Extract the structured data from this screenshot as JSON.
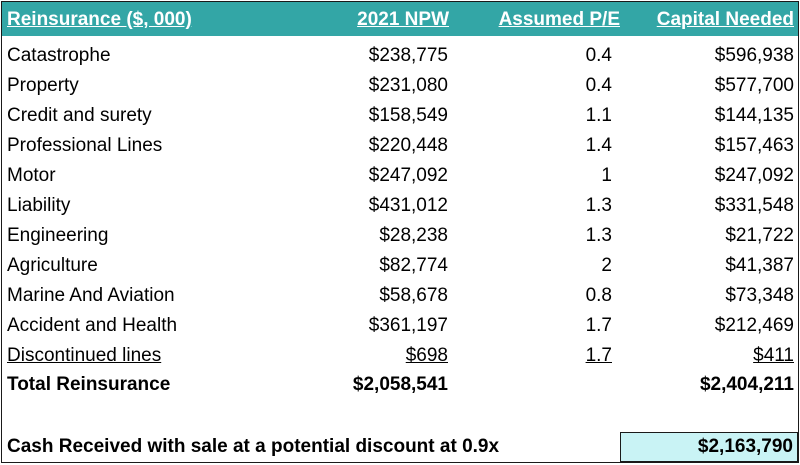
{
  "header": {
    "name": "Reinsurance ($, 000)",
    "npw": "2021 NPW",
    "pe": "Assumed P/E",
    "capital": "Capital Needed"
  },
  "rows": [
    {
      "name": "Catastrophe",
      "npw": "$238,775",
      "pe": "0.4",
      "capital": "$596,938"
    },
    {
      "name": "Property",
      "npw": "$231,080",
      "pe": "0.4",
      "capital": "$577,700"
    },
    {
      "name": "Credit and surety",
      "npw": "$158,549",
      "pe": "1.1",
      "capital": "$144,135"
    },
    {
      "name": "Professional Lines",
      "npw": "$220,448",
      "pe": "1.4",
      "capital": "$157,463"
    },
    {
      "name": "Motor",
      "npw": "$247,092",
      "pe": "1",
      "capital": "$247,092"
    },
    {
      "name": "Liability",
      "npw": "$431,012",
      "pe": "1.3",
      "capital": "$331,548"
    },
    {
      "name": "Engineering",
      "npw": "$28,238",
      "pe": "1.3",
      "capital": "$21,722"
    },
    {
      "name": "Agriculture",
      "npw": "$82,774",
      "pe": "2",
      "capital": "$41,387"
    },
    {
      "name": "Marine And Aviation",
      "npw": "$58,678",
      "pe": "0.8",
      "capital": "$73,348"
    },
    {
      "name": "Accident and Health",
      "npw": "$361,197",
      "pe": "1.7",
      "capital": "$212,469"
    },
    {
      "name": "Discontinued lines",
      "npw": "$698",
      "pe": "1.7",
      "capital": "$411"
    }
  ],
  "total": {
    "name": "Total Reinsurance",
    "npw": "$2,058,541",
    "capital": "$2,404,211"
  },
  "cash": {
    "label": "Cash Received with sale at a potential discount at 0.9x",
    "value": "$2,163,790"
  }
}
